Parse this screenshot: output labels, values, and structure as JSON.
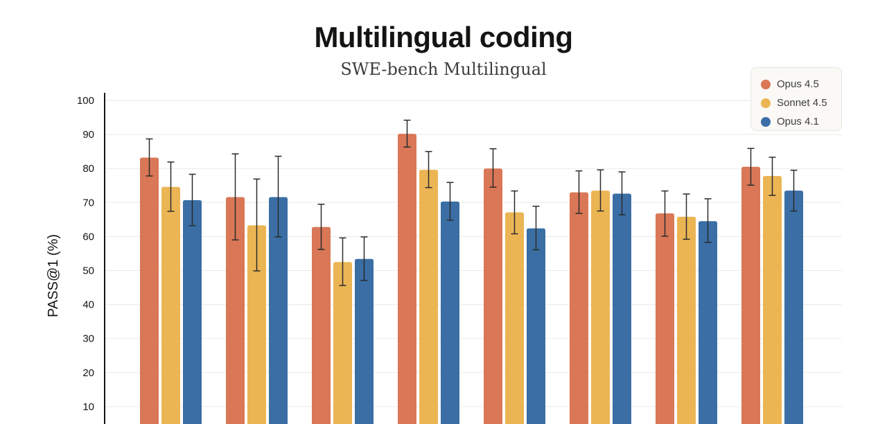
{
  "chart_data": {
    "type": "bar",
    "title": "Multilingual coding",
    "subtitle": "SWE-bench Multilingual",
    "ylabel": "PASS@1 (%)",
    "xlabel": "",
    "ylim": [
      0,
      100
    ],
    "yticks": [
      10,
      20,
      30,
      40,
      50,
      60,
      70,
      80,
      90,
      100
    ],
    "grid": true,
    "legend_position": "top-right",
    "categories": [
      "",
      "",
      "",
      "",
      "",
      "",
      "",
      ""
    ],
    "series": [
      {
        "name": "Opus 4.5",
        "color": "#d97757",
        "values": [
          83.2,
          71.6,
          62.8,
          90.2,
          80.0,
          73.0,
          66.8,
          80.5
        ],
        "error_low": [
          77.8,
          59.0,
          56.2,
          86.3,
          74.5,
          66.8,
          60.1,
          75.1
        ],
        "error_high": [
          88.7,
          84.3,
          69.5,
          94.2,
          85.8,
          79.3,
          73.4,
          85.9
        ]
      },
      {
        "name": "Sonnet 4.5",
        "color": "#ebb554",
        "values": [
          74.6,
          63.3,
          52.5,
          79.6,
          67.1,
          73.5,
          65.8,
          77.8
        ],
        "error_low": [
          67.4,
          49.9,
          45.6,
          74.4,
          60.8,
          67.5,
          59.2,
          72.1
        ],
        "error_high": [
          81.9,
          76.9,
          59.6,
          85.0,
          73.4,
          79.6,
          72.5,
          83.3
        ]
      },
      {
        "name": "Opus 4.1",
        "color": "#3a6ea5",
        "values": [
          70.7,
          71.6,
          53.4,
          70.3,
          62.4,
          72.6,
          64.5,
          73.5
        ],
        "error_low": [
          63.2,
          59.9,
          47.1,
          64.8,
          56.1,
          66.4,
          58.3,
          67.5
        ],
        "error_high": [
          78.3,
          83.6,
          59.9,
          75.9,
          68.9,
          79.0,
          71.1,
          79.5
        ]
      }
    ]
  }
}
